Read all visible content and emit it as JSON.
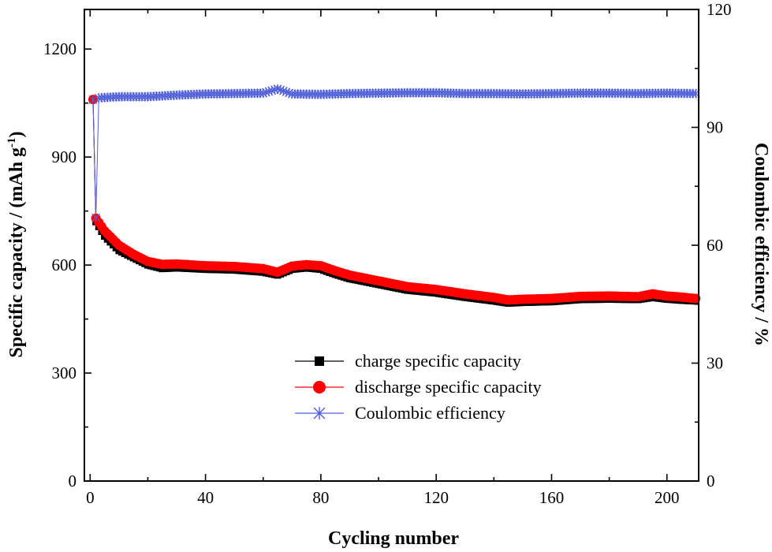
{
  "chart_data": {
    "type": "line",
    "xlabel": "Cycling number",
    "ylabel_left": "Specific capacity / (mAh g",
    "ylabel_left_sup": "-1",
    "ylabel_left_end": ")",
    "ylabel_right": "Coulombic efficiency / %",
    "xlim": [
      -2,
      211
    ],
    "ylim_left": [
      0,
      1310
    ],
    "ylim_right": [
      0,
      120
    ],
    "x_ticks": [
      0,
      40,
      80,
      120,
      160,
      200
    ],
    "y_left_ticks": [
      0,
      300,
      600,
      900,
      1200
    ],
    "y_right_ticks": [
      0,
      30,
      60,
      90,
      120
    ],
    "legend_position": "lower-center",
    "series": [
      {
        "name": "charge specific capacity",
        "axis": "left",
        "color": "#000000",
        "marker": "square",
        "points": [
          [
            1,
            1060
          ],
          [
            2,
            720
          ],
          [
            5,
            680
          ],
          [
            10,
            640
          ],
          [
            15,
            620
          ],
          [
            20,
            600
          ],
          [
            25,
            590
          ],
          [
            30,
            592
          ],
          [
            40,
            588
          ],
          [
            50,
            586
          ],
          [
            60,
            580
          ],
          [
            65,
            572
          ],
          [
            70,
            588
          ],
          [
            75,
            592
          ],
          [
            80,
            588
          ],
          [
            85,
            574
          ],
          [
            90,
            562
          ],
          [
            100,
            546
          ],
          [
            110,
            530
          ],
          [
            120,
            522
          ],
          [
            130,
            510
          ],
          [
            140,
            500
          ],
          [
            145,
            494
          ],
          [
            150,
            496
          ],
          [
            160,
            498
          ],
          [
            170,
            504
          ],
          [
            180,
            505
          ],
          [
            190,
            504
          ],
          [
            195,
            510
          ],
          [
            200,
            505
          ],
          [
            205,
            502
          ],
          [
            210,
            500
          ]
        ]
      },
      {
        "name": "discharge specific capacity",
        "axis": "left",
        "color": "#ff0000",
        "marker": "circle",
        "points": [
          [
            1,
            1060
          ],
          [
            2,
            730
          ],
          [
            5,
            695
          ],
          [
            10,
            655
          ],
          [
            15,
            630
          ],
          [
            20,
            610
          ],
          [
            25,
            602
          ],
          [
            30,
            603
          ],
          [
            40,
            598
          ],
          [
            50,
            596
          ],
          [
            60,
            590
          ],
          [
            65,
            580
          ],
          [
            70,
            597
          ],
          [
            75,
            601
          ],
          [
            80,
            598
          ],
          [
            85,
            584
          ],
          [
            90,
            572
          ],
          [
            100,
            556
          ],
          [
            110,
            540
          ],
          [
            120,
            532
          ],
          [
            130,
            520
          ],
          [
            140,
            510
          ],
          [
            145,
            503
          ],
          [
            150,
            505
          ],
          [
            160,
            507
          ],
          [
            170,
            513
          ],
          [
            180,
            514
          ],
          [
            190,
            512
          ],
          [
            195,
            520
          ],
          [
            200,
            514
          ],
          [
            205,
            511
          ],
          [
            210,
            507
          ]
        ]
      },
      {
        "name": "Coulombic efficiency",
        "axis": "right",
        "color": "#4f5fd9",
        "marker": "asterisk",
        "points": [
          [
            1,
            97
          ],
          [
            2,
            67
          ],
          [
            3,
            97.5
          ],
          [
            10,
            97.8
          ],
          [
            20,
            97.8
          ],
          [
            30,
            98.2
          ],
          [
            40,
            98.5
          ],
          [
            50,
            98.6
          ],
          [
            60,
            98.7
          ],
          [
            65,
            99.8
          ],
          [
            70,
            98.5
          ],
          [
            80,
            98.4
          ],
          [
            90,
            98.6
          ],
          [
            100,
            98.7
          ],
          [
            110,
            98.8
          ],
          [
            120,
            98.8
          ],
          [
            130,
            98.6
          ],
          [
            140,
            98.6
          ],
          [
            150,
            98.5
          ],
          [
            160,
            98.6
          ],
          [
            170,
            98.7
          ],
          [
            180,
            98.7
          ],
          [
            190,
            98.6
          ],
          [
            200,
            98.7
          ],
          [
            210,
            98.6
          ]
        ]
      }
    ]
  }
}
